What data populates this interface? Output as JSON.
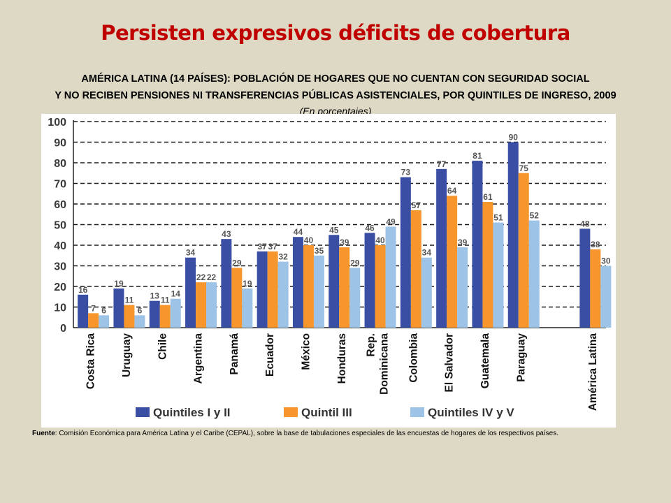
{
  "header": {
    "title": "Persisten expresivos déficits de cobertura",
    "subtitle_line1": "AMÉRICA LATINA (14 PAÍSES): POBLACIÓN DE HOGARES QUE NO CUENTAN CON SEGURIDAD SOCIAL",
    "subtitle_line2": "Y NO RECIBEN PENSIONES NI TRANSFERENCIAS PÚBLICAS ASISTENCIALES, POR QUINTILES DE INGRESO, 2009",
    "units": "(En porcentajes)"
  },
  "footer": {
    "source_label": "Fuente",
    "source_text": ": Comisión Económica para América Latina y el Caribe (CEPAL), sobre la base de tabulaciones especiales de las encuestas de hogares de los respectivos países."
  },
  "chart_data": {
    "type": "bar",
    "categories": [
      "Costa Rica",
      "Uruguay",
      "Chile",
      "Argentina",
      "Panamá",
      "Ecuador",
      "México",
      "Honduras",
      "Rep. Dominicana",
      "Colombia",
      "El Salvador",
      "Guatemala",
      "Paraguay",
      "América Latina"
    ],
    "category_lines": [
      [
        "Costa Rica"
      ],
      [
        "Uruguay"
      ],
      [
        "Chile"
      ],
      [
        "Argentina"
      ],
      [
        "Panamá"
      ],
      [
        "Ecuador"
      ],
      [
        "México"
      ],
      [
        "Honduras"
      ],
      [
        "Rep.",
        "Dominicana"
      ],
      [
        "Colombia"
      ],
      [
        "El Salvador"
      ],
      [
        "Guatemala"
      ],
      [
        "Paraguay"
      ],
      [
        "América Latina"
      ]
    ],
    "series": [
      {
        "name": "Quintiles I y II",
        "color": "#3a4fa3",
        "values": [
          16,
          19,
          13,
          34,
          43,
          37,
          44,
          45,
          46,
          73,
          77,
          81,
          90,
          48
        ]
      },
      {
        "name": "Quintil III",
        "color": "#f7962d",
        "values": [
          7,
          11,
          11,
          22,
          29,
          37,
          40,
          39,
          40,
          57,
          64,
          61,
          75,
          38
        ]
      },
      {
        "name": "Quintiles IV y V",
        "color": "#9dc3e6",
        "values": [
          6,
          6,
          14,
          22,
          19,
          32,
          35,
          29,
          49,
          34,
          39,
          51,
          52,
          30
        ]
      }
    ],
    "yticks": [
      0,
      10,
      20,
      30,
      40,
      50,
      60,
      70,
      80,
      90,
      100
    ],
    "ylim": [
      0,
      100
    ],
    "grid": true,
    "legend_position": "bottom"
  }
}
